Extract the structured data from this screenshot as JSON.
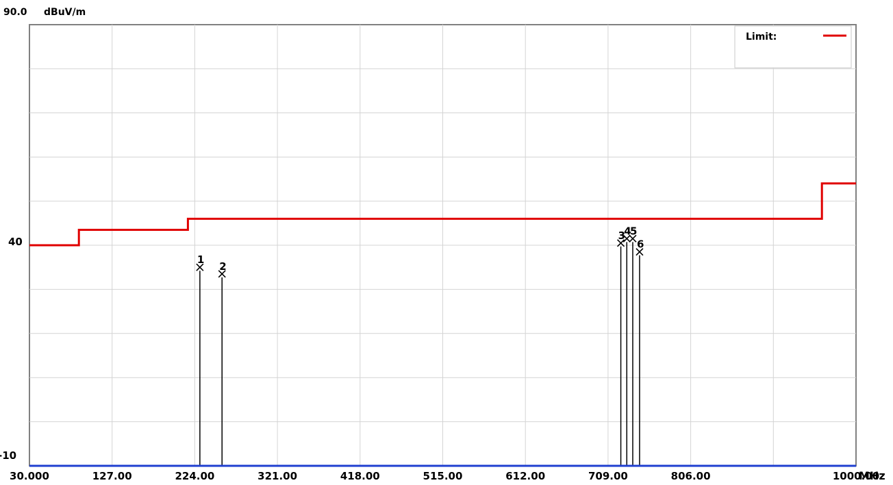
{
  "chart_data": {
    "type": "line",
    "y_top_label": "90.0",
    "y_unit": "dBuV/m",
    "y_mid_label": "40",
    "y_bottom_label": "-10",
    "ylim": [
      -10,
      90
    ],
    "xlim": [
      30,
      1000
    ],
    "x_unit": "MHz",
    "x_ticks": [
      30,
      127,
      224,
      321,
      418,
      515,
      612,
      709,
      806,
      1000
    ],
    "x_tick_labels": [
      "30.000",
      "127.00",
      "224.00",
      "321.00",
      "418.00",
      "515.00",
      "612.00",
      "709.00",
      "806.00",
      "1000.00"
    ],
    "grid": true,
    "grid_x_lines": [
      30,
      127,
      224,
      321,
      418,
      515,
      612,
      709,
      806,
      903,
      1000
    ],
    "grid_y_lines": [
      80,
      70,
      60,
      50,
      40,
      30,
      20,
      10,
      0
    ],
    "legend": {
      "label": "Limit:",
      "placement": "top-right",
      "color": "#e00000"
    },
    "limit_line": {
      "name": "Limit:",
      "color": "#e00000",
      "points": [
        [
          30,
          40
        ],
        [
          88,
          40
        ],
        [
          88,
          43.5
        ],
        [
          216,
          43.5
        ],
        [
          216,
          46
        ],
        [
          960,
          46
        ],
        [
          960,
          54
        ],
        [
          1000,
          54
        ]
      ]
    },
    "baseline": {
      "value": -10,
      "color": "#1f3fd0"
    },
    "markers": [
      {
        "label": "1",
        "x": 230,
        "y": 35
      },
      {
        "label": "2",
        "x": 256,
        "y": 33.5
      },
      {
        "label": "3",
        "x": 724,
        "y": 40.5
      },
      {
        "label": "4",
        "x": 731,
        "y": 41.5
      },
      {
        "label": "5",
        "x": 738,
        "y": 41.5
      },
      {
        "label": "6",
        "x": 746,
        "y": 38.5
      }
    ]
  }
}
